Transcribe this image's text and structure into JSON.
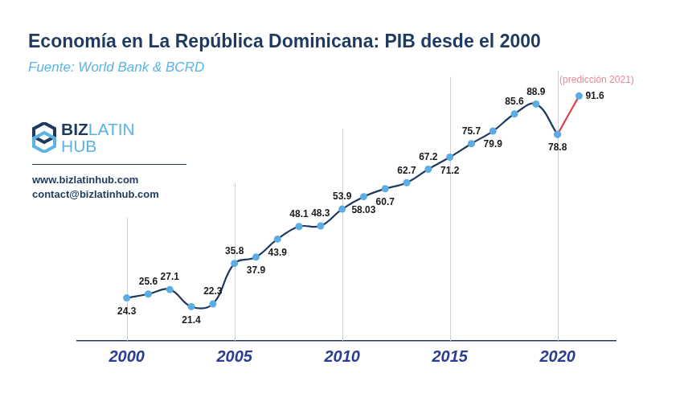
{
  "chart_data": {
    "type": "line",
    "title": "Economía en La República Dominicana: PIB desde el 2000",
    "subtitle": "Fuente: World Bank & BCRD",
    "x": [
      2000,
      2001,
      2002,
      2003,
      2004,
      2005,
      2006,
      2007,
      2008,
      2009,
      2010,
      2011,
      2012,
      2013,
      2014,
      2015,
      2016,
      2017,
      2018,
      2019,
      2020,
      2021
    ],
    "series": [
      {
        "color": "#1e3a5f",
        "marker": "circle",
        "line_style": "solid",
        "values": [
          24.3,
          25.6,
          27.1,
          21.4,
          22.3,
          35.8,
          37.9,
          43.9,
          48.1,
          48.3,
          53.9,
          58.03,
          60.7,
          62.7,
          67.2,
          71.2,
          75.7,
          79.9,
          85.6,
          88.9,
          78.8,
          null
        ]
      },
      {
        "color": "#d9434b",
        "marker": "circle",
        "line_style": "solid",
        "values": [
          null,
          null,
          null,
          null,
          null,
          null,
          null,
          null,
          null,
          null,
          null,
          null,
          null,
          null,
          null,
          null,
          null,
          null,
          null,
          null,
          78.8,
          91.6
        ]
      }
    ],
    "xlim": [
      1997.7,
      2022.7
    ],
    "xticks": [
      2000,
      2005,
      2010,
      2015,
      2020
    ],
    "ylim": [
      10,
      100
    ],
    "tick_labels": "x",
    "grid": true,
    "data_labels": true,
    "annotations": [
      {
        "text": "(predicción 2021)",
        "x": 2021,
        "y": 91.6,
        "color": "#e88a94"
      }
    ]
  },
  "branding": {
    "logo": [
      "BIZ",
      "LATIN",
      "HUB"
    ],
    "website": "www.bizlatinhub.com",
    "email": "contact@bizlatinhub.com"
  }
}
